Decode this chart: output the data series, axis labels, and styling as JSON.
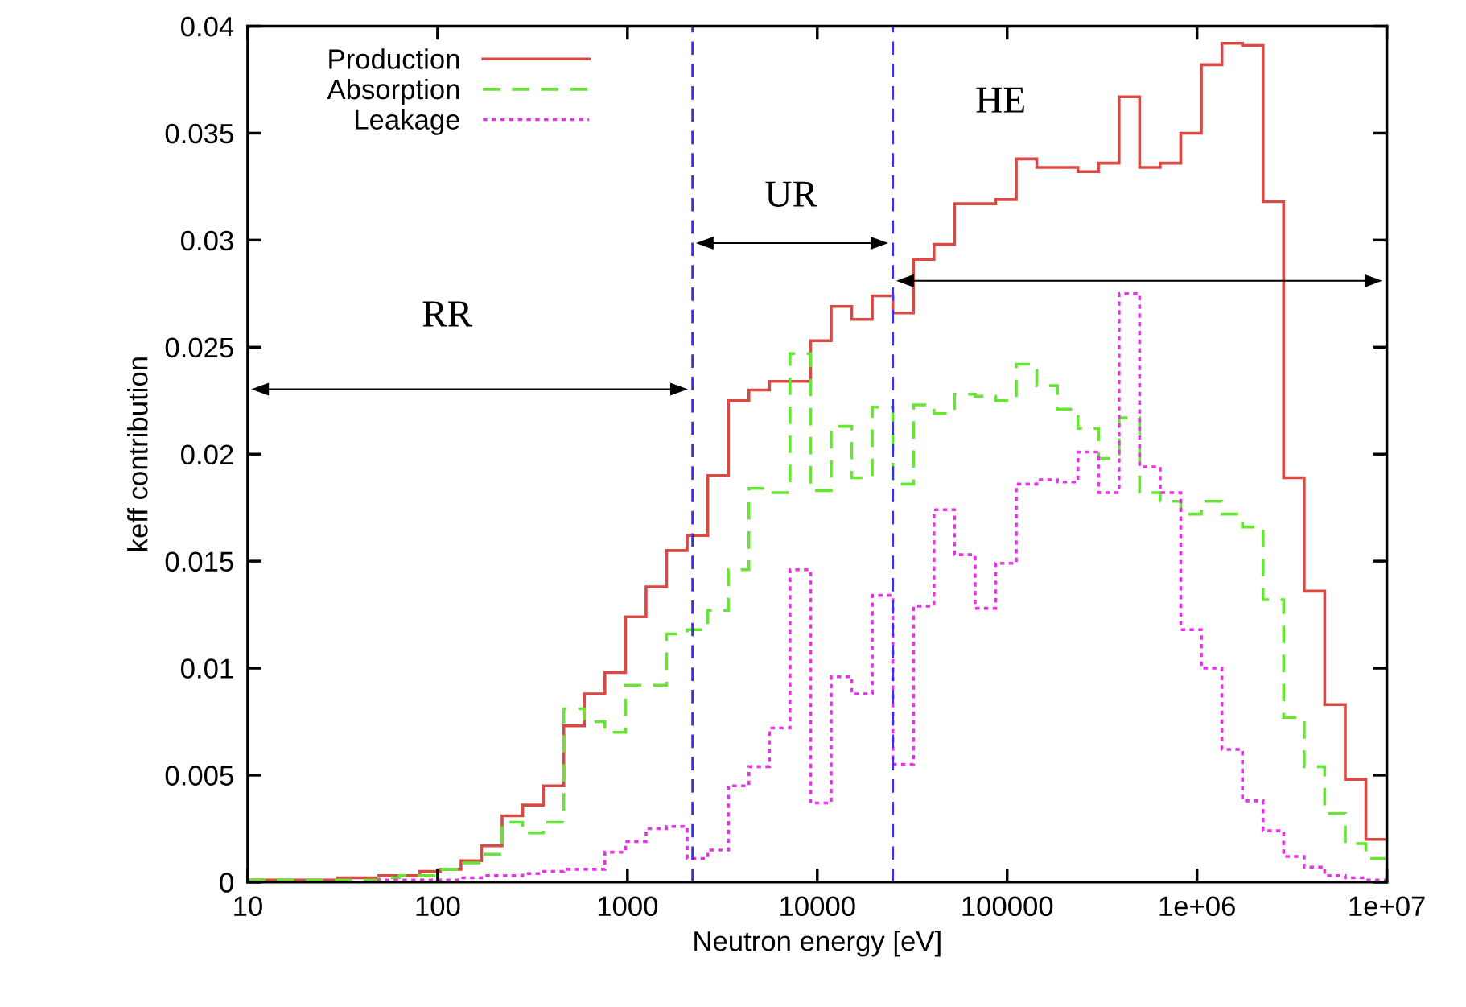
{
  "chart_data": {
    "type": "histogram",
    "xlabel": "Neutron energy [eV]",
    "ylabel": "keff contribution",
    "bins": [
      10,
      10.96,
      14.07,
      18.05,
      23.17,
      29.73,
      38.15,
      48.96,
      62.83,
      80.63,
      103.5,
      132.8,
      170.4,
      218.6,
      280.6,
      360.1,
      462.1,
      593.0,
      760.9,
      976.5,
      1253,
      1608,
      2064,
      2649,
      3399,
      4362,
      5597,
      7183,
      9218,
      11830,
      15180,
      19480,
      25000,
      32080,
      41170,
      52840,
      67800,
      87010,
      111700,
      143300,
      183900,
      236000,
      302800,
      388600,
      498700,
      640000,
      821300,
      1054000,
      1353000,
      1736000,
      2228000,
      2859000,
      3669000,
      4708000,
      6042000,
      7754000,
      10000000
    ],
    "series": [
      {
        "name": "Production",
        "color": "#d94a44",
        "line_style": "solid",
        "values": [
          0.0001,
          0.0001,
          0.0001,
          0.0001,
          0.0001,
          0.0002,
          0.0002,
          0.0003,
          0.0003,
          0.0005,
          0.0006,
          0.001,
          0.0017,
          0.0031,
          0.0036,
          0.0045,
          0.0073,
          0.0088,
          0.0098,
          0.0124,
          0.0138,
          0.0155,
          0.0162,
          0.019,
          0.0225,
          0.023,
          0.0234,
          0.0234,
          0.0253,
          0.0269,
          0.0263,
          0.0274,
          0.0266,
          0.0291,
          0.0298,
          0.0317,
          0.0317,
          0.0319,
          0.0338,
          0.0334,
          0.0334,
          0.0332,
          0.0336,
          0.0367,
          0.0334,
          0.0336,
          0.035,
          0.0382,
          0.0392,
          0.0391,
          0.0318,
          0.0189,
          0.0136,
          0.0083,
          0.0048,
          0.002
        ]
      },
      {
        "name": "Absorption",
        "color": "#66e633",
        "line_style": "dashed",
        "values": [
          0.0001,
          0.0001,
          0.0001,
          0.0001,
          0.0001,
          0.0001,
          0.0001,
          0.0002,
          0.0003,
          0.0003,
          0.0006,
          0.0009,
          0.0013,
          0.0028,
          0.0023,
          0.0028,
          0.0081,
          0.0075,
          0.007,
          0.0092,
          0.0092,
          0.0116,
          0.0118,
          0.0127,
          0.0146,
          0.0184,
          0.0182,
          0.0247,
          0.0183,
          0.0213,
          0.0189,
          0.0222,
          0.0186,
          0.0223,
          0.0219,
          0.0228,
          0.0227,
          0.0225,
          0.0242,
          0.0232,
          0.0221,
          0.0212,
          0.0198,
          0.0217,
          0.0182,
          0.0178,
          0.0172,
          0.0178,
          0.0172,
          0.0166,
          0.0132,
          0.0077,
          0.0054,
          0.0032,
          0.0018,
          0.0011
        ]
      },
      {
        "name": "Leakage",
        "color": "#e633e6",
        "line_style": "dotted",
        "values": [
          0,
          0,
          0,
          0,
          0,
          0,
          0,
          0.0001,
          0.0001,
          0.0001,
          0.0001,
          0.0002,
          0.0003,
          0.0003,
          0.0004,
          0.0005,
          0.0006,
          0.0006,
          0.0014,
          0.0019,
          0.0025,
          0.0026,
          0.0011,
          0.0015,
          0.0045,
          0.0054,
          0.0072,
          0.0146,
          0.0037,
          0.0096,
          0.0088,
          0.0134,
          0.0055,
          0.0129,
          0.0174,
          0.0153,
          0.0128,
          0.0149,
          0.0186,
          0.0188,
          0.0187,
          0.0201,
          0.0182,
          0.0275,
          0.0194,
          0.0182,
          0.0118,
          0.01,
          0.0062,
          0.0038,
          0.0024,
          0.0012,
          0.0007,
          0.0003,
          0.0002,
          0.0001
        ]
      }
    ],
    "log": "x",
    "xlim": [
      10,
      10000000
    ],
    "xticks": [
      10,
      100,
      1000,
      10000,
      100000,
      {
        "value": 1000000,
        "label": "1e+06"
      },
      {
        "value": 10000000,
        "label": "1e+07"
      }
    ],
    "ylim": [
      0,
      0.04
    ],
    "yticks": [
      0,
      0.005,
      0.01,
      0.015,
      0.02,
      0.025,
      0.03,
      0.035,
      0.04
    ],
    "ref_lines": [
      {
        "axis": "x",
        "value": 2200,
        "color": "#3a2ff0",
        "line_style": "dashed"
      },
      {
        "axis": "x",
        "value": 25000,
        "color": "#3a2ff0",
        "line_style": "dashed"
      }
    ],
    "annotations": [
      "RR",
      "UR",
      "HE"
    ],
    "legend": "top left",
    "grid": false
  }
}
